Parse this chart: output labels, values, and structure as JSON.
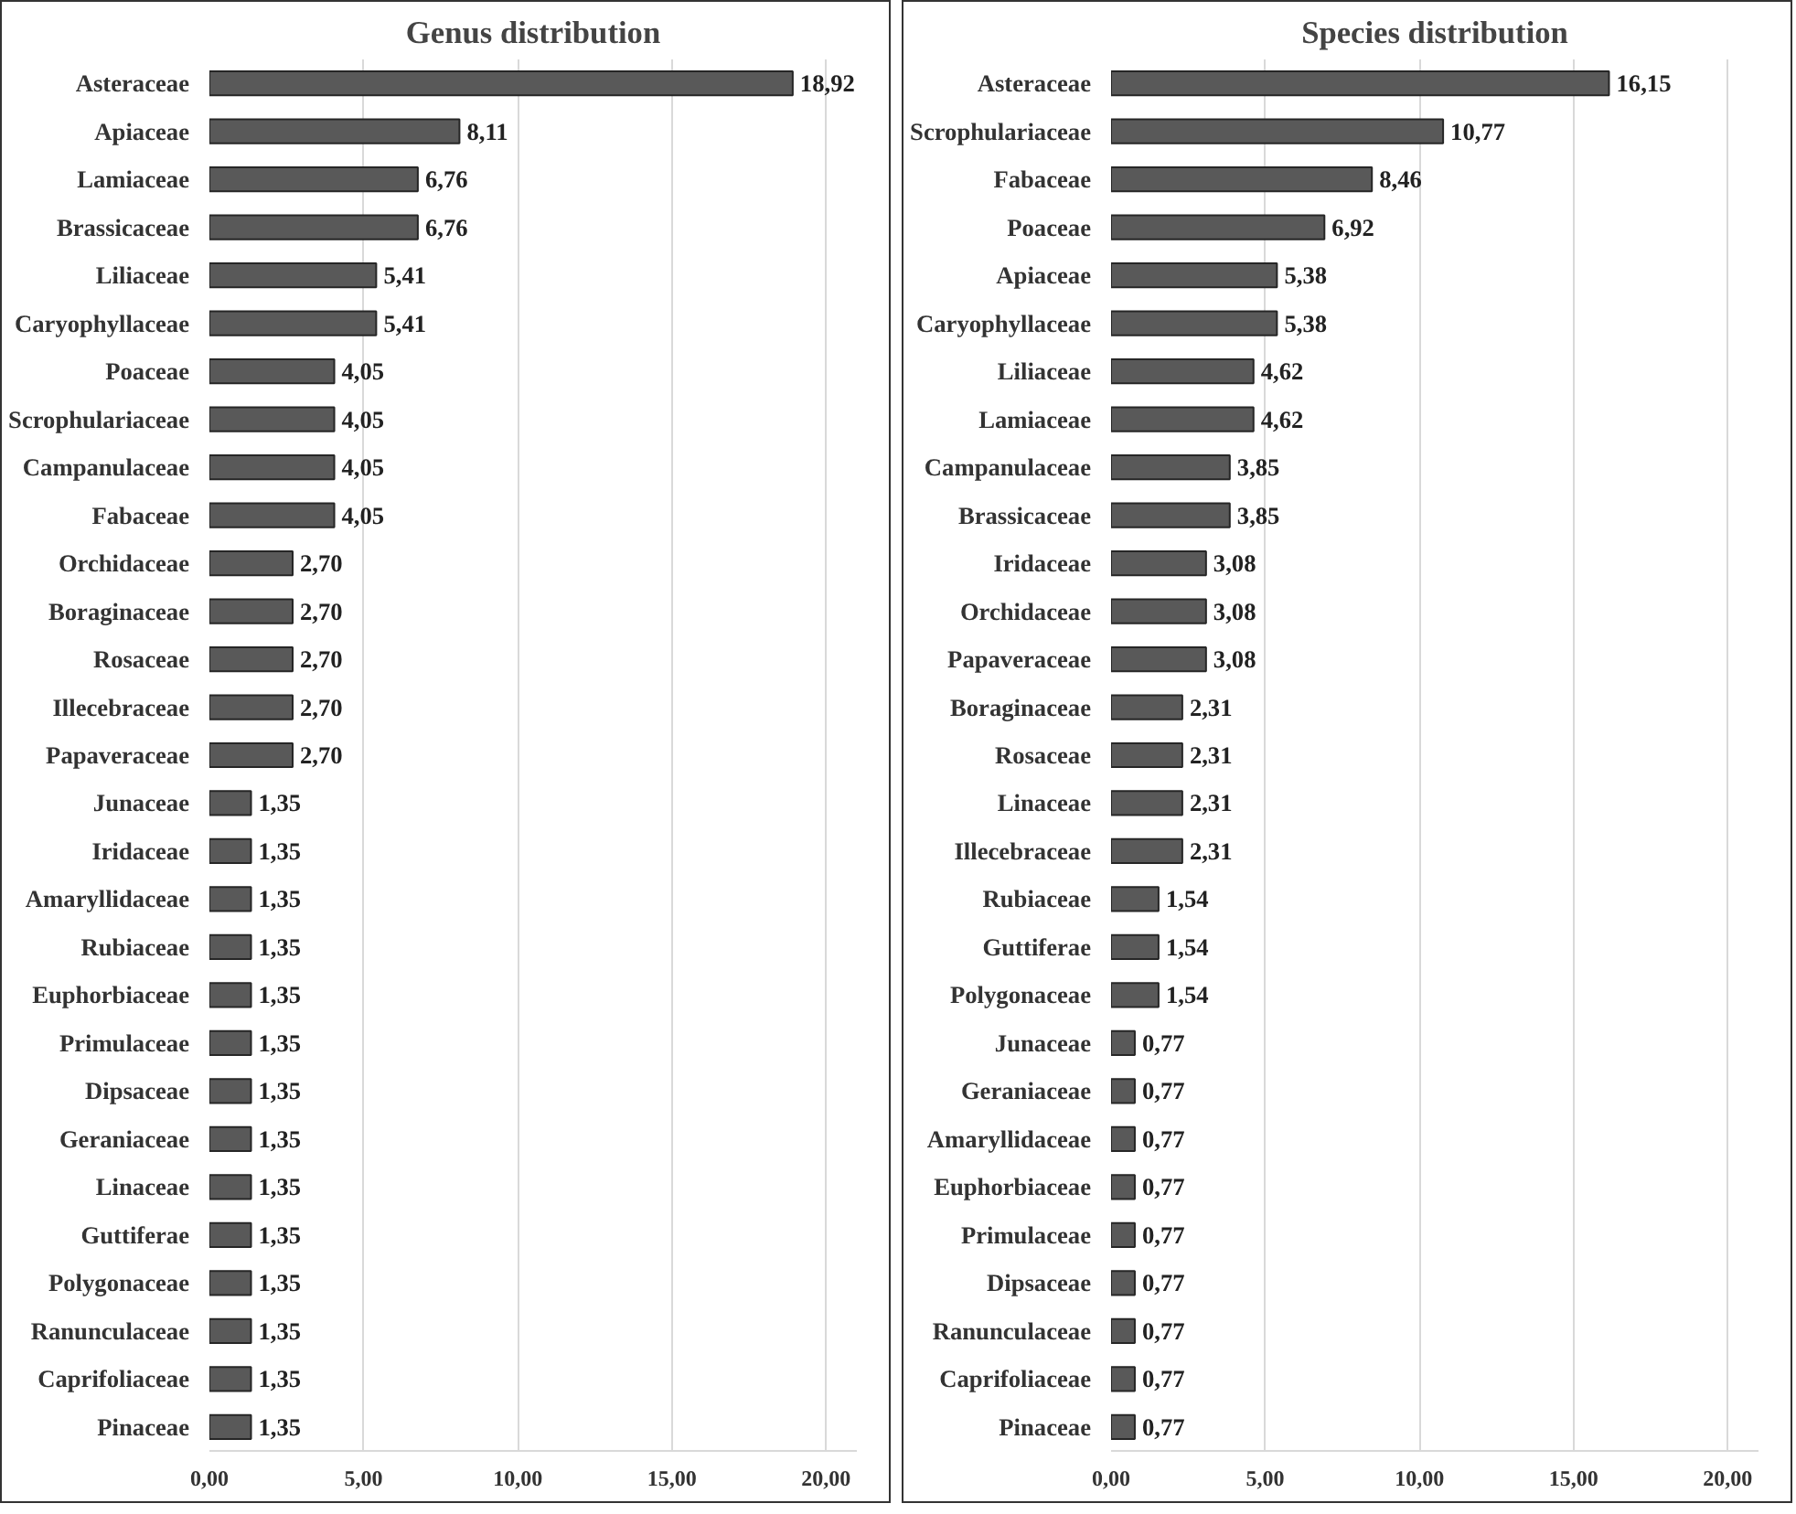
{
  "chart_data": [
    {
      "type": "bar",
      "orientation": "horizontal",
      "title": "Genus distribution",
      "categories": [
        "Asteraceae",
        "Apiaceae",
        "Lamiaceae",
        "Brassicaceae",
        "Liliaceae",
        "Caryophyllaceae",
        "Poaceae",
        "Scrophulariaceae",
        "Campanulaceae",
        "Fabaceae",
        "Orchidaceae",
        "Boraginaceae",
        "Rosaceae",
        "Illecebraceae",
        "Papaveraceae",
        "Junaceae",
        "Iridaceae",
        "Amaryllidaceae",
        "Rubiaceae",
        "Euphorbiaceae",
        "Primulaceae",
        "Dipsaceae",
        "Geraniaceae",
        "Linaceae",
        "Guttiferae",
        "Polygonaceae",
        "Ranunculaceae",
        "Caprifoliaceae",
        "Pinaceae"
      ],
      "values": [
        18.92,
        8.11,
        6.76,
        6.76,
        5.41,
        5.41,
        4.05,
        4.05,
        4.05,
        4.05,
        2.7,
        2.7,
        2.7,
        2.7,
        2.7,
        1.35,
        1.35,
        1.35,
        1.35,
        1.35,
        1.35,
        1.35,
        1.35,
        1.35,
        1.35,
        1.35,
        1.35,
        1.35,
        1.35
      ],
      "value_labels": [
        "18,92",
        "8,11",
        "6,76",
        "6,76",
        "5,41",
        "5,41",
        "4,05",
        "4,05",
        "4,05",
        "4,05",
        "2,70",
        "2,70",
        "2,70",
        "2,70",
        "2,70",
        "1,35",
        "1,35",
        "1,35",
        "1,35",
        "1,35",
        "1,35",
        "1,35",
        "1,35",
        "1,35",
        "1,35",
        "1,35",
        "1,35",
        "1,35",
        "1,35"
      ],
      "color": "#595959",
      "xlim": [
        0,
        21
      ],
      "xticks": [
        {
          "value": 0,
          "label": "0,00"
        },
        {
          "value": 5,
          "label": "5,00"
        },
        {
          "value": 10,
          "label": "10,00"
        },
        {
          "value": 15,
          "label": "15,00"
        },
        {
          "value": 20,
          "label": "20,00"
        }
      ],
      "grid": "x"
    },
    {
      "type": "bar",
      "orientation": "horizontal",
      "title": "Species distribution",
      "categories": [
        "Asteraceae",
        "Scrophulariaceae",
        "Fabaceae",
        "Poaceae",
        "Apiaceae",
        "Caryophyllaceae",
        "Liliaceae",
        "Lamiaceae",
        "Campanulaceae",
        "Brassicaceae",
        "Iridaceae",
        "Orchidaceae",
        "Papaveraceae",
        "Boraginaceae",
        "Rosaceae",
        "Linaceae",
        "Illecebraceae",
        "Rubiaceae",
        "Guttiferae",
        "Polygonaceae",
        "Junaceae",
        "Geraniaceae",
        "Amaryllidaceae",
        "Euphorbiaceae",
        "Primulaceae",
        "Dipsaceae",
        "Ranunculaceae",
        "Caprifoliaceae",
        "Pinaceae"
      ],
      "values": [
        16.15,
        10.77,
        8.46,
        6.92,
        5.38,
        5.38,
        4.62,
        4.62,
        3.85,
        3.85,
        3.08,
        3.08,
        3.08,
        2.31,
        2.31,
        2.31,
        2.31,
        1.54,
        1.54,
        1.54,
        0.77,
        0.77,
        0.77,
        0.77,
        0.77,
        0.77,
        0.77,
        0.77,
        0.77
      ],
      "value_labels": [
        "16,15",
        "10,77",
        "8,46",
        "6,92",
        "5,38",
        "5,38",
        "4,62",
        "4,62",
        "3,85",
        "3,85",
        "3,08",
        "3,08",
        "3,08",
        "2,31",
        "2,31",
        "2,31",
        "2,31",
        "1,54",
        "1,54",
        "1,54",
        "0,77",
        "0,77",
        "0,77",
        "0,77",
        "0,77",
        "0,77",
        "0,77",
        "0,77",
        "0,77"
      ],
      "color": "#595959",
      "xlim": [
        0,
        21
      ],
      "xticks": [
        {
          "value": 0,
          "label": "0,00"
        },
        {
          "value": 5,
          "label": "5,00"
        },
        {
          "value": 10,
          "label": "10,00"
        },
        {
          "value": 15,
          "label": "15,00"
        },
        {
          "value": 20,
          "label": "20,00"
        }
      ],
      "grid": "x"
    }
  ]
}
